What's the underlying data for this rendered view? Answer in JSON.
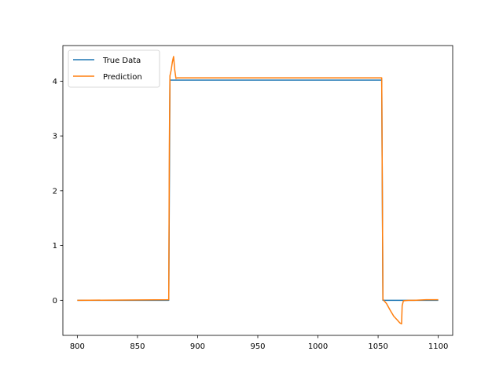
{
  "chart_data": {
    "type": "line",
    "title": "",
    "xlabel": "",
    "ylabel": "",
    "xlim": [
      788,
      1112
    ],
    "ylim": [
      -0.64,
      4.65
    ],
    "xticks": [
      800,
      850,
      900,
      950,
      1000,
      1050,
      1100
    ],
    "yticks": [
      0,
      1,
      2,
      3,
      4
    ],
    "grid": false,
    "legend": {
      "position": "upper left",
      "entries": [
        "True Data",
        "Prediction"
      ]
    },
    "series": [
      {
        "name": "True Data",
        "color": "#1f77b4",
        "x": [
          800,
          876,
          877,
          1053,
          1054,
          1100
        ],
        "y": [
          0,
          0,
          4.02,
          4.02,
          0,
          0
        ]
      },
      {
        "name": "Prediction",
        "color": "#ff7f0e",
        "x": [
          800,
          876,
          876.5,
          877,
          878,
          879,
          880,
          881,
          882,
          883,
          885,
          890,
          900,
          950,
          1000,
          1050,
          1053,
          1054,
          1055,
          1057,
          1060,
          1063,
          1066,
          1068,
          1069.5,
          1070,
          1071,
          1075,
          1080,
          1090,
          1100
        ],
        "y": [
          0,
          0.01,
          2.8,
          4.1,
          4.2,
          4.35,
          4.45,
          4.2,
          4.05,
          4.06,
          4.06,
          4.06,
          4.06,
          4.06,
          4.06,
          4.06,
          4.06,
          0.02,
          -0.01,
          -0.06,
          -0.18,
          -0.29,
          -0.36,
          -0.41,
          -0.43,
          -0.1,
          -0.01,
          0.0,
          0.0,
          0.01,
          0.01
        ]
      }
    ]
  }
}
